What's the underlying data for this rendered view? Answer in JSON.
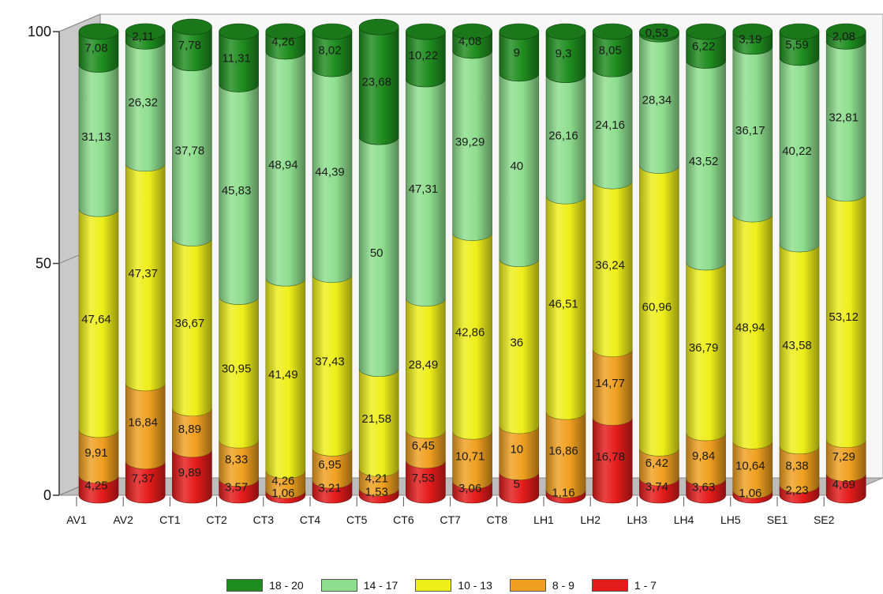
{
  "chart_data": {
    "type": "bar",
    "stacked": true,
    "percent_stacked": true,
    "style": "3d-cylinder",
    "categories": [
      "AV1",
      "AV2",
      "CT1",
      "CT2",
      "CT3",
      "CT4",
      "CT5",
      "CT6",
      "CT7",
      "CT8",
      "LH1",
      "LH2",
      "LH3",
      "LH4",
      "LH5",
      "SE1",
      "SE2"
    ],
    "ylim": [
      0,
      100
    ],
    "yticks": [
      "0",
      "50",
      "100"
    ],
    "legend_position": "bottom-center",
    "series": [
      {
        "name": "1 - 7",
        "color": "#e41b1b",
        "labels": [
          "4,25",
          "7,37",
          "9,89",
          "3,57",
          "1,06",
          "3,21",
          "1,53",
          "7,53",
          "3,06",
          "5",
          "1,16",
          "16,78",
          "3,74",
          "3,63",
          "1,06",
          "2,23",
          "4,69"
        ],
        "values": [
          4.25,
          7.37,
          9.89,
          3.57,
          1.06,
          3.21,
          1.53,
          7.53,
          3.06,
          5,
          1.16,
          16.78,
          3.74,
          3.63,
          1.06,
          2.23,
          4.69
        ]
      },
      {
        "name": "8 - 9",
        "color": "#f0a020",
        "labels": [
          "9,91",
          "16,84",
          "8,89",
          "8,33",
          "4,26",
          "6,95",
          "4,21",
          "6,45",
          "10,71",
          "10",
          "16,86",
          "14,77",
          "6,42",
          "9,84",
          "10,64",
          "8,38",
          "7,29"
        ],
        "values": [
          9.91,
          16.84,
          8.89,
          8.33,
          4.26,
          6.95,
          4.21,
          6.45,
          10.71,
          10,
          16.86,
          14.77,
          6.42,
          9.84,
          10.64,
          8.38,
          7.29
        ]
      },
      {
        "name": "10 - 13",
        "color": "#eeee1a",
        "labels": [
          "47,64",
          "47,37",
          "36,67",
          "30,95",
          "41,49",
          "37,43",
          "21,58",
          "28,49",
          "42,86",
          "36",
          "46,51",
          "36,24",
          "60,96",
          "36,79",
          "48,94",
          "43,58",
          "53,12"
        ],
        "values": [
          47.64,
          47.37,
          36.67,
          30.95,
          41.49,
          37.43,
          21.58,
          28.49,
          42.86,
          36,
          46.51,
          36.24,
          60.96,
          36.79,
          48.94,
          43.58,
          53.12
        ]
      },
      {
        "name": "14 - 17",
        "color": "#8ede8e",
        "labels": [
          "31,13",
          "26,32",
          "37,78",
          "45,83",
          "48,94",
          "44,39",
          "50",
          "47,31",
          "39,29",
          "40",
          "26,16",
          "24,16",
          "28,34",
          "43,52",
          "36,17",
          "40,22",
          "32,81"
        ],
        "values": [
          31.13,
          26.32,
          37.78,
          45.83,
          48.94,
          44.39,
          50,
          47.31,
          39.29,
          40,
          26.16,
          24.16,
          28.34,
          43.52,
          36.17,
          40.22,
          32.81
        ]
      },
      {
        "name": "18 - 20",
        "color": "#1e8c1e",
        "labels": [
          "7,08",
          "2,11",
          "7,78",
          "11,31",
          "4,26",
          "8,02",
          "23,68",
          "10,22",
          "4,08",
          "9",
          "9,3",
          "8,05",
          "0,53",
          "6,22",
          "3,19",
          "5,59",
          "2,08"
        ],
        "values": [
          7.08,
          2.11,
          7.78,
          11.31,
          4.26,
          8.02,
          23.68,
          10.22,
          4.08,
          9,
          9.3,
          8.05,
          0.53,
          6.22,
          3.19,
          5.59,
          2.08
        ]
      }
    ]
  },
  "legend": {
    "items": [
      {
        "label": "18 - 20",
        "color": "#1e8c1e"
      },
      {
        "label": "14 - 17",
        "color": "#8ede8e"
      },
      {
        "label": "10 - 13",
        "color": "#eeee1a"
      },
      {
        "label": "8 - 9",
        "color": "#f0a020"
      },
      {
        "label": "1 - 7",
        "color": "#e41b1b"
      }
    ]
  }
}
